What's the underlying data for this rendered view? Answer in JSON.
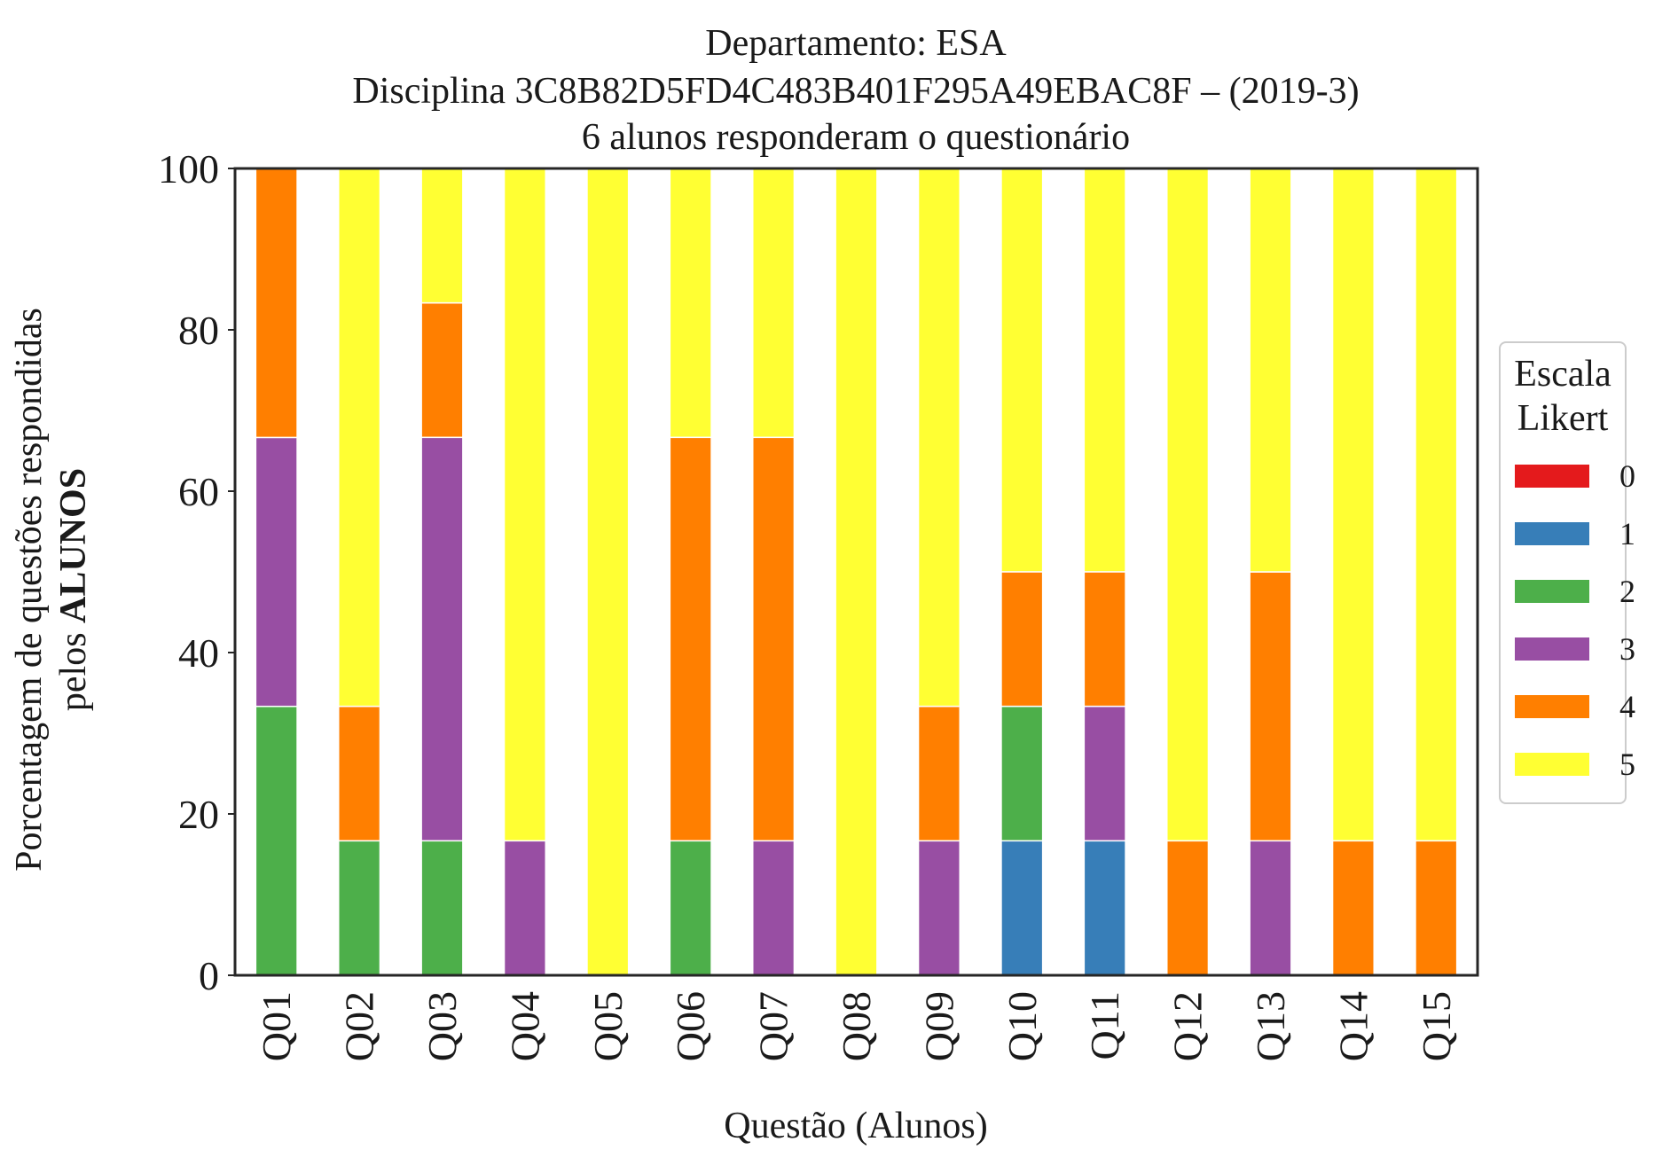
{
  "title": {
    "line1": "Departamento: ESA",
    "line2": "Disciplina 3C8B82D5FD4C483B401F295A49EBAC8F – (2019-3)",
    "line3": "6 alunos responderam o questionário"
  },
  "axes": {
    "xlabel": "Questão (Alunos)",
    "ylabel_line1": "Porcentagem de questões respondidas",
    "ylabel_line2_prefix": "pelos ",
    "ylabel_line2_bold": "ALUNOS"
  },
  "legend": {
    "title_line1": "Escala",
    "title_line2": "Likert",
    "placement": "right-outside"
  },
  "chart_data": {
    "type": "bar",
    "stacked": true,
    "categories": [
      "Q01",
      "Q02",
      "Q03",
      "Q04",
      "Q05",
      "Q06",
      "Q07",
      "Q08",
      "Q09",
      "Q10",
      "Q11",
      "Q12",
      "Q13",
      "Q14",
      "Q15"
    ],
    "ylim": [
      0,
      100
    ],
    "yticks": [
      0,
      20,
      40,
      60,
      80,
      100
    ],
    "grid": false,
    "series": [
      {
        "name": "0",
        "color": "#e41a1c",
        "values": [
          0,
          0,
          0,
          0,
          0,
          0,
          0,
          0,
          0,
          0,
          0,
          0,
          0,
          0,
          0
        ]
      },
      {
        "name": "1",
        "color": "#377eb8",
        "values": [
          0,
          0,
          0,
          0,
          0,
          0,
          0,
          0,
          0,
          16.67,
          16.67,
          0,
          0,
          0,
          0
        ]
      },
      {
        "name": "2",
        "color": "#4daf4a",
        "values": [
          33.33,
          16.67,
          16.67,
          0,
          0,
          16.67,
          0,
          0,
          0,
          16.67,
          0,
          0,
          0,
          0,
          0
        ]
      },
      {
        "name": "3",
        "color": "#984ea3",
        "values": [
          33.33,
          0,
          50,
          16.67,
          0,
          0,
          16.67,
          0,
          16.67,
          0,
          16.67,
          0,
          16.67,
          0,
          0
        ]
      },
      {
        "name": "4",
        "color": "#ff7f00",
        "values": [
          33.33,
          16.67,
          16.67,
          0,
          0,
          50,
          50,
          0,
          16.67,
          16.67,
          16.67,
          16.67,
          33.33,
          16.67,
          16.67
        ]
      },
      {
        "name": "5",
        "color": "#ffff33",
        "values": [
          0,
          66.67,
          16.67,
          83.33,
          100,
          33.33,
          33.33,
          100,
          66.67,
          50,
          50,
          83.33,
          50,
          83.33,
          83.33
        ]
      }
    ]
  }
}
